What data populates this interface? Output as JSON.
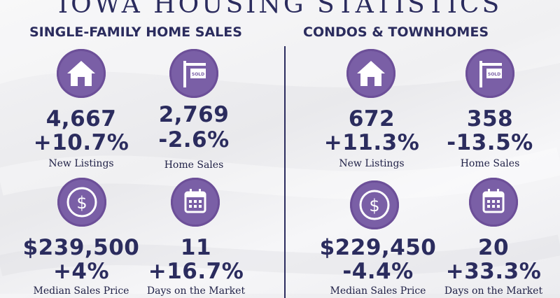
{
  "title": "IOWA HOUSING STATISTICS",
  "sections": [
    {
      "heading": "SINGLE-FAMILY HOME SALES",
      "stats": [
        {
          "icon": "house-icon",
          "value": "4,667",
          "change": "+10.7%",
          "label": "New Listings"
        },
        {
          "icon": "sold-sign-icon",
          "value": "2,769",
          "change": "-2.6%",
          "label": "Home Sales"
        },
        {
          "icon": "dollar-icon",
          "value": "$239,500",
          "change": "+4%",
          "label": "Median Sales Price"
        },
        {
          "icon": "calendar-icon",
          "value": "11",
          "change": "+16.7%",
          "label": "Days on the Market"
        }
      ]
    },
    {
      "heading": "CONDOS & TOWNHOMES",
      "stats": [
        {
          "icon": "house-icon",
          "value": "672",
          "change": "+11.3%",
          "label": "New Listings"
        },
        {
          "icon": "sold-sign-icon",
          "value": "358",
          "change": "-13.5%",
          "label": "Home Sales"
        },
        {
          "icon": "dollar-icon",
          "value": "$229,450",
          "change": "-4.4%",
          "label": "Median Sales Price"
        },
        {
          "icon": "calendar-icon",
          "value": "20",
          "change": "+33.3%",
          "label": "Days on the Market"
        }
      ]
    }
  ],
  "sold_sign_text": "SOLD",
  "colors": {
    "navy": "#2b2c5e",
    "purple": "#7a5fa6",
    "background": "#efeff2"
  }
}
